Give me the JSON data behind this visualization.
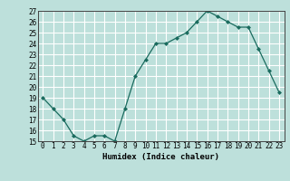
{
  "x": [
    0,
    1,
    2,
    3,
    4,
    5,
    6,
    7,
    8,
    9,
    10,
    11,
    12,
    13,
    14,
    15,
    16,
    17,
    18,
    19,
    20,
    21,
    22,
    23
  ],
  "y": [
    19,
    18,
    17,
    15.5,
    15,
    15.5,
    15.5,
    15,
    18,
    21,
    22.5,
    24,
    24,
    24.5,
    25,
    26,
    27,
    26.5,
    26,
    25.5,
    25.5,
    23.5,
    21.5,
    19.5
  ],
  "line_color": "#1a6b5e",
  "marker_color": "#1a6b5e",
  "bg_color": "#bde0db",
  "grid_color": "#ffffff",
  "xlabel": "Humidex (Indice chaleur)",
  "ylim": [
    15,
    27
  ],
  "xlim_min": -0.5,
  "xlim_max": 23.5,
  "yticks": [
    15,
    16,
    17,
    18,
    19,
    20,
    21,
    22,
    23,
    24,
    25,
    26,
    27
  ],
  "xticks": [
    0,
    1,
    2,
    3,
    4,
    5,
    6,
    7,
    8,
    9,
    10,
    11,
    12,
    13,
    14,
    15,
    16,
    17,
    18,
    19,
    20,
    21,
    22,
    23
  ],
  "xlabel_fontsize": 6.5,
  "tick_fontsize": 5.5
}
